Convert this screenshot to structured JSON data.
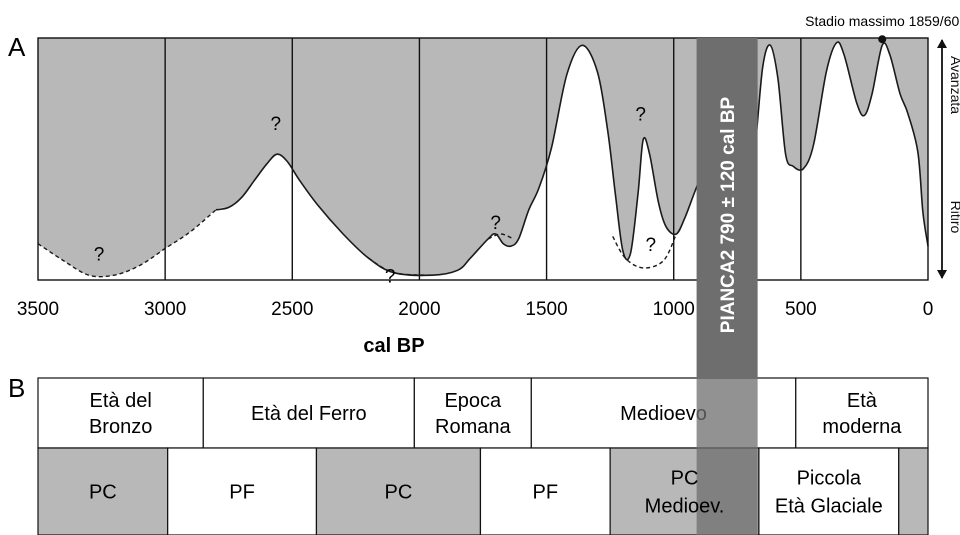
{
  "panel_a_label": "A",
  "panel_b_label": "B",
  "chart_data": {
    "type": "area",
    "xlabel": "cal BP",
    "x_reversed": true,
    "xlim": [
      3500,
      0
    ],
    "x_ticks": [
      3500,
      3000,
      2500,
      2000,
      1500,
      1000,
      500,
      0
    ],
    "vertical_gridlines": [
      3000,
      2500,
      2000,
      1500,
      1000,
      500
    ],
    "y_axis_label_top": "Avanzata",
    "y_axis_label_bottom": "Ritiro",
    "ylim": [
      0,
      1
    ],
    "series": [
      {
        "values_note": "relative glacier extent, 0 = ritiro (retreat), 1 = avanzata (advance)",
        "points": [
          [
            2800,
            0.29
          ],
          [
            2750,
            0.3
          ],
          [
            2700,
            0.34
          ],
          [
            2650,
            0.41
          ],
          [
            2600,
            0.48
          ],
          [
            2560,
            0.52
          ],
          [
            2520,
            0.49
          ],
          [
            2470,
            0.41
          ],
          [
            2400,
            0.31
          ],
          [
            2300,
            0.19
          ],
          [
            2200,
            0.09
          ],
          [
            2100,
            0.03
          ],
          [
            1950,
            0.02
          ],
          [
            1850,
            0.04
          ],
          [
            1800,
            0.09
          ],
          [
            1730,
            0.17
          ],
          [
            1700,
            0.19
          ],
          [
            1670,
            0.15
          ],
          [
            1640,
            0.14
          ],
          [
            1610,
            0.17
          ],
          [
            1570,
            0.29
          ],
          [
            1530,
            0.38
          ],
          [
            1480,
            0.55
          ],
          [
            1420,
            0.85
          ],
          [
            1360,
            0.97
          ],
          [
            1300,
            0.86
          ],
          [
            1260,
            0.62
          ],
          [
            1230,
            0.36
          ],
          [
            1200,
            0.12
          ],
          [
            1170,
            0.11
          ],
          [
            1140,
            0.36
          ],
          [
            1120,
            0.58
          ],
          [
            1095,
            0.52
          ],
          [
            1060,
            0.32
          ],
          [
            1030,
            0.22
          ],
          [
            990,
            0.19
          ],
          [
            955,
            0.26
          ],
          [
            915,
            0.37
          ],
          [
            880,
            0.46
          ],
          [
            860,
            0.48
          ],
          [
            840,
            0.43
          ],
          [
            790,
            0.29
          ],
          [
            750,
            0.23
          ],
          [
            715,
            0.3
          ],
          [
            680,
            0.55
          ],
          [
            650,
            0.88
          ],
          [
            620,
            0.97
          ],
          [
            590,
            0.83
          ],
          [
            560,
            0.52
          ],
          [
            530,
            0.47
          ],
          [
            490,
            0.46
          ],
          [
            450,
            0.56
          ],
          [
            400,
            0.86
          ],
          [
            360,
            0.98
          ],
          [
            330,
            0.93
          ],
          [
            280,
            0.73
          ],
          [
            250,
            0.68
          ],
          [
            220,
            0.77
          ],
          [
            180,
            0.97
          ],
          [
            150,
            0.93
          ],
          [
            110,
            0.77
          ],
          [
            80,
            0.69
          ],
          [
            40,
            0.53
          ],
          [
            20,
            0.28
          ],
          [
            0,
            0.14
          ]
        ],
        "uncertain_segments": [
          [
            [
              3500,
              0.15
            ],
            [
              3400,
              0.08
            ],
            [
              3300,
              0.02
            ],
            [
              3200,
              0.02
            ],
            [
              3100,
              0.06
            ],
            [
              3000,
              0.13
            ],
            [
              2900,
              0.2
            ],
            [
              2800,
              0.29
            ]
          ],
          [
            [
              2200,
              0.09
            ],
            [
              2100,
              0.03
            ],
            [
              1950,
              0.02
            ]
          ],
          [
            [
              1730,
              0.17
            ],
            [
              1680,
              0.19
            ],
            [
              1630,
              0.17
            ]
          ],
          [
            [
              1240,
              0.18
            ],
            [
              1190,
              0.09
            ],
            [
              1120,
              0.05
            ],
            [
              1040,
              0.08
            ],
            [
              990,
              0.19
            ]
          ]
        ]
      }
    ],
    "question_marks": [
      {
        "x": 3260,
        "y": 0.08,
        "text": "?"
      },
      {
        "x": 2565,
        "y": 0.62,
        "text": "?"
      },
      {
        "x": 2115,
        "y": -0.01,
        "text": "?"
      },
      {
        "x": 1700,
        "y": 0.21,
        "text": "?"
      },
      {
        "x": 1130,
        "y": 0.66,
        "text": "?"
      },
      {
        "x": 1090,
        "y": 0.12,
        "text": "?"
      }
    ],
    "annotations": [
      {
        "text": "Stadio massimo 1859/60",
        "x": 180,
        "y": 0.995
      }
    ],
    "highlight_band": {
      "label": "PIANCA2 790 ± 120 cal BP",
      "center": 790,
      "half_width": 120,
      "color": "#6e6e6e"
    }
  },
  "table": {
    "periods": [
      {
        "from": 3500,
        "to": 2850,
        "text": "Età del\nBronzo"
      },
      {
        "from": 2850,
        "to": 2020,
        "text": "Età del Ferro"
      },
      {
        "from": 2020,
        "to": 1560,
        "text": "Epoca\nRomana"
      },
      {
        "from": 1560,
        "to": 520,
        "text": "Medioevo"
      },
      {
        "from": 520,
        "to": 0,
        "text": "Età\nmoderna"
      }
    ],
    "phases": [
      {
        "from": 3500,
        "to": 2990,
        "text": "PC",
        "shaded": true
      },
      {
        "from": 2990,
        "to": 2405,
        "text": "PF",
        "shaded": false
      },
      {
        "from": 2405,
        "to": 1760,
        "text": "PC",
        "shaded": true
      },
      {
        "from": 1760,
        "to": 1250,
        "text": "PF",
        "shaded": false
      },
      {
        "from": 1250,
        "to": 665,
        "text": "PC\nMedioev.",
        "shaded": true
      },
      {
        "from": 665,
        "to": 115,
        "text": "Piccola\nEtà Glaciale",
        "shaded": false
      },
      {
        "from": 115,
        "to": 0,
        "text": "",
        "shaded": true
      }
    ]
  },
  "colors": {
    "fill": "#b8b8b8",
    "band": "#6e6e6e",
    "band_over_table": "#8c8c8c",
    "line": "#1a1a1a"
  }
}
